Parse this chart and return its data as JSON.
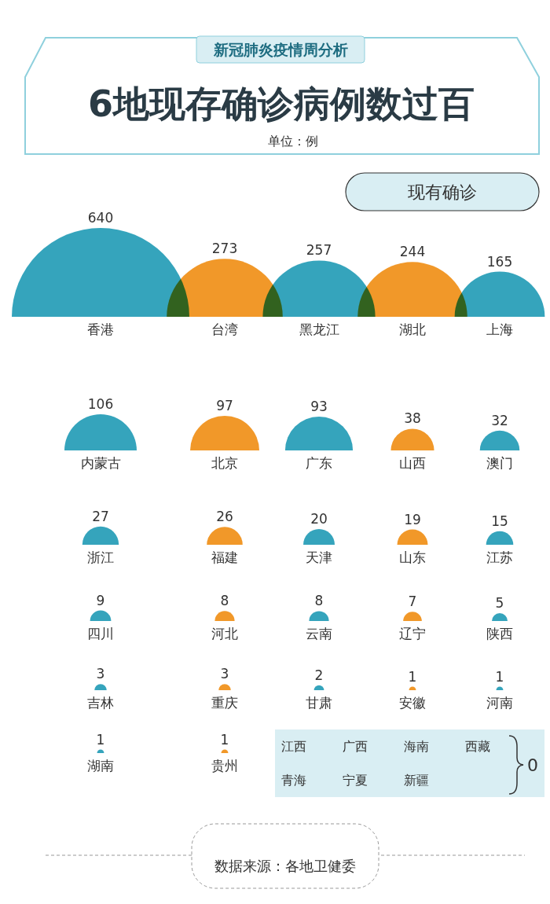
{
  "chart_data": {
    "type": "other",
    "title": "6地现存确诊病例数过百",
    "subtitle": "单位：例",
    "annotations": [
      "新冠肺炎疫情周分析",
      "现有确诊",
      "江西",
      "广西",
      "海南",
      "西藏",
      "青海",
      "宁夏",
      "新疆",
      "0",
      "数据来源：各地卫健委"
    ],
    "categories": [
      "香港",
      "台湾",
      "黑龙江",
      "湖北",
      "上海",
      "内蒙古",
      "北京",
      "广东",
      "山西",
      "澳门",
      "浙江",
      "福建",
      "天津",
      "山东",
      "江苏",
      "四川",
      "河北",
      "云南",
      "辽宁",
      "陕西",
      "吉林",
      "重庆",
      "甘肃",
      "安徽",
      "河南",
      "湖南",
      "贵州"
    ],
    "values": [
      640,
      273,
      257,
      244,
      165,
      106,
      97,
      93,
      38,
      32,
      27,
      26,
      20,
      19,
      15,
      9,
      8,
      8,
      7,
      5,
      3,
      3,
      2,
      1,
      1,
      1,
      1
    ],
    "colors": [
      "#2a9fb8",
      "#f0921e",
      "#2a9fb8",
      "#f0921e",
      "#2a9fb8",
      "#2a9fb8",
      "#f0921e",
      "#2a9fb8",
      "#f0921e",
      "#2a9fb8",
      "#2a9fb8",
      "#f0921e",
      "#2a9fb8",
      "#f0921e",
      "#2a9fb8",
      "#2a9fb8",
      "#f0921e",
      "#2a9fb8",
      "#f0921e",
      "#2a9fb8",
      "#2a9fb8",
      "#f0921e",
      "#2a9fb8",
      "#f0921e",
      "#2a9fb8",
      "#2a9fb8",
      "#f0921e"
    ],
    "data_labels": true
  }
}
